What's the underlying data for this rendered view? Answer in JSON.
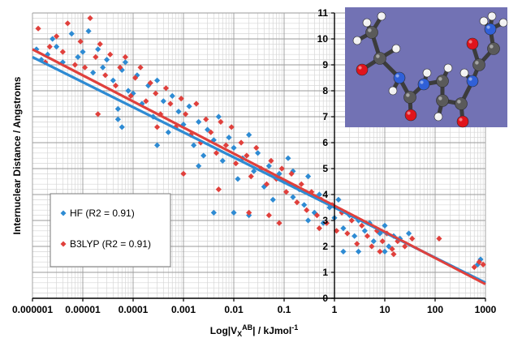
{
  "chart_data": {
    "type": "scatter",
    "title": "",
    "xlabel": "Log|V",
    "xlabel_sub": "X",
    "xlabel_sup": "AB",
    "xlabel_tail": "| / kJmol",
    "xlabel_unit_sup": "-1",
    "ylabel": "Internuclear Distance / Angstroms",
    "x_scale": "log",
    "xlim": [
      1e-06,
      1000
    ],
    "ylim": [
      0,
      11
    ],
    "x_tick_labels": [
      "0.000001",
      "0.00001",
      "0.0001",
      "0.001",
      "0.01",
      "0.1",
      "1",
      "10",
      "100",
      "1000"
    ],
    "y_tick_labels": [
      "0",
      "1",
      "2",
      "3",
      "4",
      "5",
      "6",
      "7",
      "8",
      "9",
      "10",
      "11"
    ],
    "grid": true,
    "legend_position": "bottom-left",
    "series": [
      {
        "name": "HF (R2 = 0.91)",
        "color": "#2e8bd3",
        "marker": "diamond",
        "fit_line": {
          "x": [
            1e-06,
            1000
          ],
          "y": [
            9.3,
            0.6
          ]
        },
        "points": [
          [
            1.2e-06,
            9.6
          ],
          [
            1.5e-06,
            9.2
          ],
          [
            2e-06,
            9.4
          ],
          [
            2.5e-06,
            10.0
          ],
          [
            3e-06,
            9.7
          ],
          [
            4e-06,
            9.1
          ],
          [
            6e-06,
            10.2
          ],
          [
            8e-06,
            9.3
          ],
          [
            1e-05,
            9.5
          ],
          [
            1.3e-05,
            10.3
          ],
          [
            1.6e-05,
            8.7
          ],
          [
            2e-05,
            9.6
          ],
          [
            2.5e-05,
            8.9
          ],
          [
            3e-05,
            9.2
          ],
          [
            4e-05,
            8.4
          ],
          [
            5e-05,
            7.3
          ],
          [
            6e-05,
            8.8
          ],
          [
            7e-05,
            9.1
          ],
          [
            8e-05,
            8.0
          ],
          [
            0.0001,
            7.9
          ],
          [
            0.00012,
            8.6
          ],
          [
            0.00015,
            7.5
          ],
          [
            0.0002,
            8.2
          ],
          [
            0.00025,
            7.0
          ],
          [
            0.0003,
            8.4
          ],
          [
            0.0004,
            7.6
          ],
          [
            0.0005,
            6.4
          ],
          [
            0.0006,
            7.8
          ],
          [
            0.0008,
            7.2
          ],
          [
            0.001,
            6.7
          ],
          [
            0.0013,
            7.4
          ],
          [
            0.0016,
            5.9
          ],
          [
            0.002,
            6.8
          ],
          [
            0.0025,
            5.5
          ],
          [
            0.003,
            6.5
          ],
          [
            0.004,
            6.1
          ],
          [
            0.005,
            7.0
          ],
          [
            0.006,
            5.3
          ],
          [
            0.008,
            6.2
          ],
          [
            0.01,
            5.8
          ],
          [
            0.012,
            4.6
          ],
          [
            0.015,
            5.4
          ],
          [
            0.02,
            6.3
          ],
          [
            0.025,
            4.9
          ],
          [
            0.03,
            5.6
          ],
          [
            0.04,
            4.3
          ],
          [
            0.05,
            5.1
          ],
          [
            0.06,
            3.8
          ],
          [
            0.08,
            4.8
          ],
          [
            0.1,
            4.5
          ],
          [
            0.12,
            5.4
          ],
          [
            0.15,
            3.9
          ],
          [
            0.2,
            4.2
          ],
          [
            0.25,
            3.6
          ],
          [
            0.3,
            4.7
          ],
          [
            0.4,
            3.3
          ],
          [
            0.5,
            4.0
          ],
          [
            0.6,
            2.9
          ],
          [
            0.8,
            3.5
          ],
          [
            1.0,
            3.1
          ],
          [
            1.2,
            3.8
          ],
          [
            1.5,
            2.7
          ],
          [
            2,
            3.2
          ],
          [
            2.5,
            2.4
          ],
          [
            3,
            3.0
          ],
          [
            4,
            2.6
          ],
          [
            5,
            2.9
          ],
          [
            6,
            2.2
          ],
          [
            8,
            2.5
          ],
          [
            10,
            2.8
          ],
          [
            12,
            2.0
          ],
          [
            15,
            2.4
          ],
          [
            20,
            2.3
          ],
          [
            30,
            2.5
          ],
          [
            0.004,
            3.3
          ],
          [
            0.01,
            3.3
          ],
          [
            0.02,
            3.2
          ],
          [
            0.15,
            4.9
          ],
          [
            0.3,
            3.0
          ],
          [
            1.5,
            1.8
          ],
          [
            3,
            1.8
          ],
          [
            10,
            1.8
          ],
          [
            700,
            1.3
          ],
          [
            800,
            1.5
          ],
          [
            6e-05,
            6.6
          ],
          [
            0.0003,
            5.9
          ],
          [
            0.002,
            5.1
          ],
          [
            5e-05,
            6.9
          ]
        ]
      },
      {
        "name": "B3LYP (R2 = 0.91)",
        "color": "#e0403c",
        "marker": "diamond",
        "fit_line": {
          "x": [
            1e-06,
            1000
          ],
          "y": [
            9.6,
            0.55
          ]
        },
        "points": [
          [
            1.3e-06,
            10.4
          ],
          [
            1.8e-06,
            9.1
          ],
          [
            2.2e-06,
            9.7
          ],
          [
            3e-06,
            10.1
          ],
          [
            4e-06,
            9.5
          ],
          [
            5e-06,
            10.6
          ],
          [
            7e-06,
            9.0
          ],
          [
            9e-06,
            9.9
          ],
          [
            1.1e-05,
            8.9
          ],
          [
            1.4e-05,
            10.8
          ],
          [
            1.8e-05,
            9.3
          ],
          [
            2.2e-05,
            9.8
          ],
          [
            2.8e-05,
            8.6
          ],
          [
            3.5e-05,
            9.4
          ],
          [
            4.5e-05,
            8.2
          ],
          [
            5.5e-05,
            8.9
          ],
          [
            7e-05,
            9.3
          ],
          [
            9e-05,
            7.8
          ],
          [
            0.00011,
            8.5
          ],
          [
            0.00014,
            8.9
          ],
          [
            0.00018,
            7.6
          ],
          [
            0.00022,
            8.3
          ],
          [
            0.00028,
            7.9
          ],
          [
            0.00035,
            7.1
          ],
          [
            0.00045,
            8.1
          ],
          [
            0.00055,
            7.5
          ],
          [
            0.0007,
            6.6
          ],
          [
            0.0009,
            7.7
          ],
          [
            0.0011,
            7.1
          ],
          [
            0.0014,
            6.3
          ],
          [
            0.0018,
            7.5
          ],
          [
            0.0022,
            6.0
          ],
          [
            0.0028,
            6.9
          ],
          [
            0.0035,
            6.4
          ],
          [
            0.0045,
            5.6
          ],
          [
            0.0055,
            6.8
          ],
          [
            0.007,
            5.9
          ],
          [
            0.009,
            6.6
          ],
          [
            0.011,
            5.2
          ],
          [
            0.014,
            6.0
          ],
          [
            0.018,
            5.5
          ],
          [
            0.022,
            4.7
          ],
          [
            0.028,
            5.8
          ],
          [
            0.035,
            5.0
          ],
          [
            0.045,
            4.4
          ],
          [
            0.055,
            5.3
          ],
          [
            0.07,
            4.6
          ],
          [
            0.09,
            5.0
          ],
          [
            0.11,
            4.1
          ],
          [
            0.14,
            4.8
          ],
          [
            0.18,
            3.7
          ],
          [
            0.22,
            4.4
          ],
          [
            0.28,
            3.4
          ],
          [
            0.35,
            4.1
          ],
          [
            0.45,
            3.2
          ],
          [
            0.55,
            3.8
          ],
          [
            0.7,
            2.9
          ],
          [
            0.9,
            3.6
          ],
          [
            1.1,
            2.6
          ],
          [
            1.4,
            3.3
          ],
          [
            1.8,
            2.5
          ],
          [
            2.2,
            3.0
          ],
          [
            2.8,
            2.1
          ],
          [
            3.5,
            2.8
          ],
          [
            4.5,
            2.4
          ],
          [
            5.5,
            2.0
          ],
          [
            7,
            2.6
          ],
          [
            9,
            2.2
          ],
          [
            11,
            2.5
          ],
          [
            14,
            1.9
          ],
          [
            18,
            2.2
          ],
          [
            25,
            2.0
          ],
          [
            35,
            2.3
          ],
          [
            120,
            2.3
          ],
          [
            0.001,
            4.8
          ],
          [
            0.005,
            4.2
          ],
          [
            0.02,
            3.3
          ],
          [
            0.05,
            3.2
          ],
          [
            0.08,
            2.9
          ],
          [
            0.0003,
            6.6
          ],
          [
            2e-05,
            7.1
          ],
          [
            600,
            1.2
          ],
          [
            750,
            1.4
          ],
          [
            900,
            1.3
          ],
          [
            0.5,
            2.7
          ],
          [
            8,
            1.8
          ],
          [
            15,
            1.7
          ]
        ]
      }
    ],
    "inset": {
      "type": "molecule",
      "background": "#7272b4",
      "atom_colors": {
        "carbon": "#5a5a5a",
        "hydrogen": "#f2f2f2",
        "oxygen": "#e0141c",
        "nitrogen": "#3060d8"
      }
    }
  }
}
